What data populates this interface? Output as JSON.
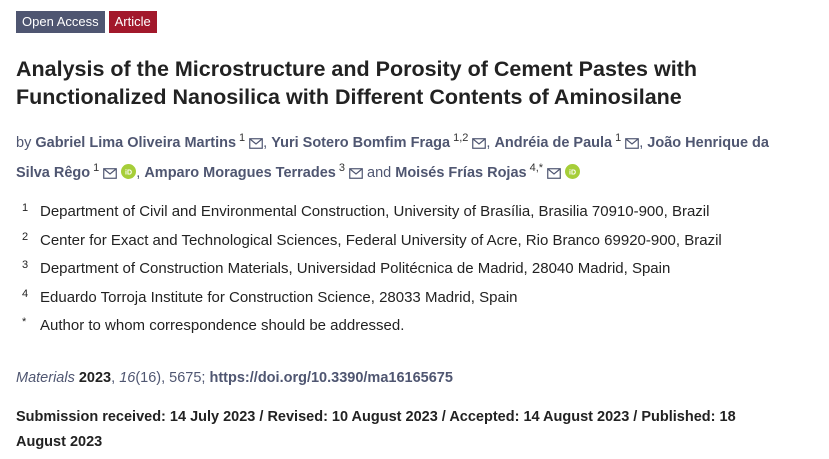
{
  "badges": [
    "Open Access",
    "Article"
  ],
  "title": "Analysis of the Microstructure and Porosity of Cement Pastes with Functionalized Nanosilica with Different Contents of Aminosilane",
  "authors_intro": "by",
  "separator": ",",
  "conjunction": "and",
  "authors": [
    {
      "name": "Gabriel Lima Oliveira Martins",
      "sup": "1",
      "email": true,
      "orcid": false
    },
    {
      "name": "Yuri Sotero Bomfim Fraga",
      "sup": "1,2",
      "email": true,
      "orcid": false
    },
    {
      "name": "Andréia de Paula",
      "sup": "1",
      "email": true,
      "orcid": false
    },
    {
      "name": "João Henrique da Silva Rêgo",
      "sup": "1",
      "email": true,
      "orcid": true
    },
    {
      "name": "Amparo Moragues Terrades",
      "sup": "3",
      "email": true,
      "orcid": false
    },
    {
      "name": "Moisés Frías Rojas",
      "sup": "4,*",
      "email": true,
      "orcid": true
    }
  ],
  "affiliations": [
    {
      "mark": "1",
      "text": "Department of Civil and Environmental Construction, University of Brasília, Brasilia 70910-900, Brazil"
    },
    {
      "mark": "2",
      "text": "Center for Exact and Technological Sciences, Federal University of Acre, Rio Branco 69920-900, Brazil"
    },
    {
      "mark": "3",
      "text": "Department of Construction Materials, Universidad Politécnica de Madrid, 28040 Madrid, Spain"
    },
    {
      "mark": "4",
      "text": "Eduardo Torroja Institute for Construction Science, 28033 Madrid, Spain"
    },
    {
      "mark": "*",
      "text": "Author to whom correspondence should be addressed."
    }
  ],
  "citation": [
    {
      "text": "Materials",
      "style": "italic"
    },
    {
      "text": " 2023",
      "style": "bold"
    },
    {
      "text": ", ",
      "style": "normal"
    },
    {
      "text": "16",
      "style": "italic"
    },
    {
      "text": "(16), 5675; ",
      "style": "normal"
    },
    {
      "text": "https://doi.org/10.3390/ma16165675",
      "style": "link"
    }
  ],
  "dates": "Submission received: 14 July 2023 / Revised: 10 August 2023 / Accepted: 14 August 2023 / Published: 18 August 2023"
}
